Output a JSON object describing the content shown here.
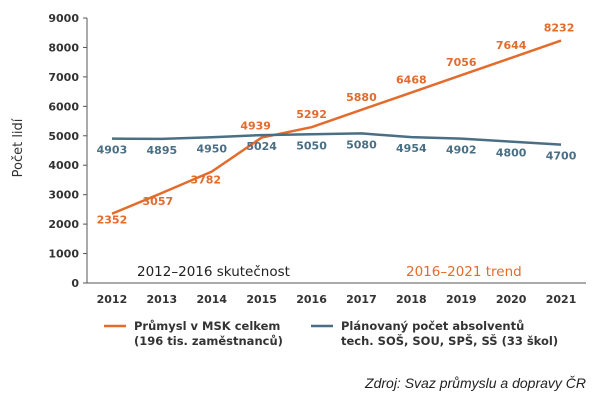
{
  "chart_data": {
    "type": "line",
    "title": "",
    "ylabel": "Počet lidí",
    "xlabel": "",
    "ylim": [
      0,
      9000
    ],
    "yticks": [
      0,
      1000,
      2000,
      3000,
      4000,
      5000,
      6000,
      7000,
      8000,
      9000
    ],
    "grid": false,
    "categories": [
      "2012",
      "2013",
      "2014",
      "2015",
      "2016",
      "2017",
      "2018",
      "2019",
      "2020",
      "2021"
    ],
    "trend_categories_color": "#e36b2c",
    "series": [
      {
        "name_lines": [
          "Průmysl v MSK celkem",
          "(196 tis. zaměstnanců)"
        ],
        "color": "#e36b2c",
        "values": [
          2352,
          3057,
          3782,
          4939,
          5292,
          5880,
          6468,
          7056,
          7644,
          8232
        ]
      },
      {
        "name_lines": [
          "Plánovaný počet absolventů",
          "tech. SOŠ, SOU, SPŠ, SŠ (33 škol)"
        ],
        "color": "#4a6f85",
        "values": [
          4903,
          4895,
          4950,
          5024,
          5050,
          5080,
          4954,
          4902,
          4800,
          4700
        ]
      }
    ],
    "annotations": [
      {
        "text": "2012–2016 skutečnost",
        "color": "#222222"
      },
      {
        "text": "2016–2021 trend",
        "color": "#e36b2c"
      }
    ],
    "legend_placement": "bottom"
  },
  "source": "Zdroj: Svaz průmyslu a dopravy ČR"
}
